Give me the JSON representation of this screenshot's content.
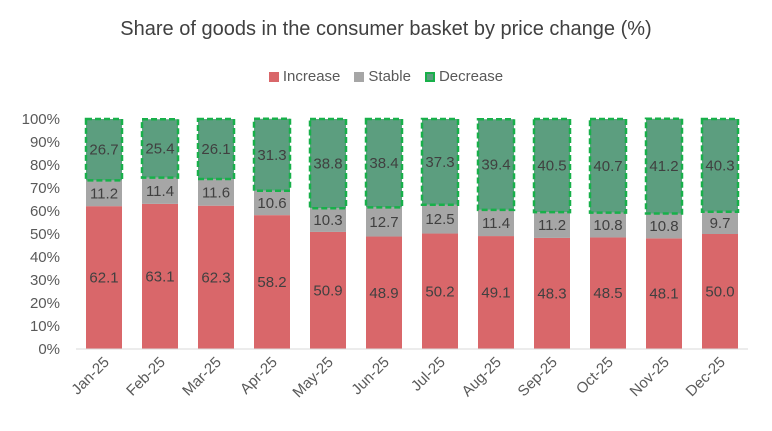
{
  "chart_data": {
    "type": "bar",
    "stacked": true,
    "percent_stacked": true,
    "title": "Share of goods in the consumer basket by price change (%)",
    "xlabel": "",
    "ylabel": "",
    "ylim": [
      0,
      100
    ],
    "y_tick_labels": [
      "0%",
      "10%",
      "20%",
      "30%",
      "40%",
      "50%",
      "60%",
      "70%",
      "80%",
      "90%",
      "100%"
    ],
    "categories": [
      "Jan-25",
      "Feb-25",
      "Mar-25",
      "Apr-25",
      "May-25",
      "Jun-25",
      "Jul-25",
      "Aug-25",
      "Sep-25",
      "Oct-25",
      "Nov-25",
      "Dec-25"
    ],
    "series": [
      {
        "name": "Increase",
        "color": "#d9676a",
        "values": [
          62.1,
          63.1,
          62.3,
          58.2,
          50.9,
          48.9,
          50.2,
          49.1,
          48.3,
          48.5,
          48.1,
          50.0
        ],
        "labels": [
          "62.1",
          "63.1",
          "62.3",
          "58.2",
          "50.9",
          "48.9",
          "50.2",
          "49.1",
          "48.3",
          "48.5",
          "48.1",
          "50.0"
        ]
      },
      {
        "name": "Stable",
        "color": "#a6a6a6",
        "values": [
          11.2,
          11.4,
          11.6,
          10.6,
          10.3,
          12.7,
          12.5,
          11.4,
          11.2,
          10.8,
          10.8,
          9.7
        ],
        "labels": [
          "11.2",
          "11.4",
          "11.6",
          "10.6",
          "10.3",
          "12.7",
          "12.5",
          "11.4",
          "11.2",
          "10.8",
          "10.8",
          "9.7"
        ]
      },
      {
        "name": "Decrease",
        "color": "#5c9e7f",
        "border": "#18b04a",
        "values": [
          26.7,
          25.4,
          26.1,
          31.3,
          38.8,
          38.4,
          37.3,
          39.4,
          40.5,
          40.7,
          41.2,
          40.3
        ],
        "labels": [
          "26.7",
          "25.4",
          "26.1",
          "31.3",
          "38.8",
          "38.4",
          "37.3",
          "39.4",
          "40.5",
          "40.7",
          "41.2",
          "40.3"
        ]
      }
    ],
    "grid": false,
    "legend_position": "top"
  }
}
